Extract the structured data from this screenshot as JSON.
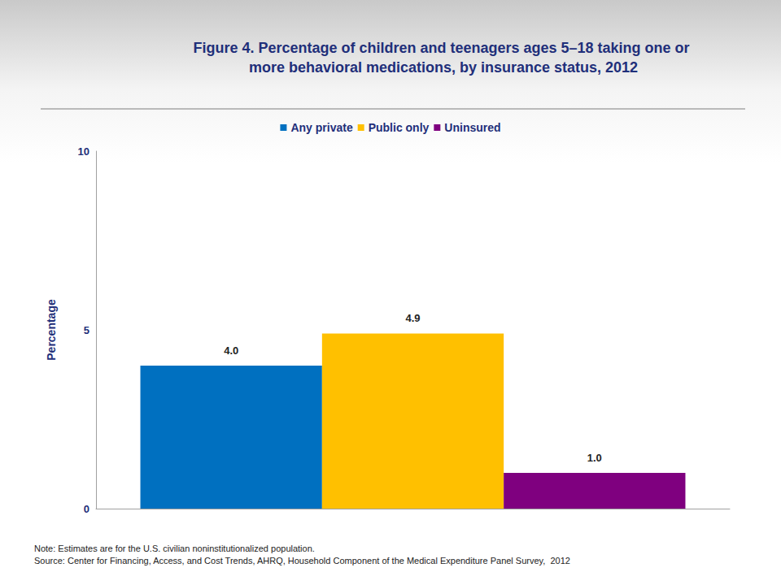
{
  "chart_data": {
    "type": "bar",
    "title": "Figure 4. Percentage of children and teenagers ages 5–18 taking one or more behavioral medications, by insurance status, 2012",
    "categories": [
      null
    ],
    "series": [
      {
        "name": "Any private",
        "color": "#0070c0",
        "values": [
          4.0
        ],
        "value_labels": [
          "4.0"
        ]
      },
      {
        "name": "Public only",
        "color": "#ffc000",
        "values": [
          4.9
        ],
        "value_labels": [
          "4.9"
        ]
      },
      {
        "name": "Uninsured",
        "color": "#7f007f",
        "values": [
          1.0
        ],
        "value_labels": [
          "1.0"
        ]
      }
    ],
    "ylabel": "Percentage",
    "ylim": [
      0,
      10
    ],
    "yticks": [
      0,
      5,
      10
    ],
    "grid": false,
    "legend": "top",
    "data_labels": true,
    "note": "Note: Estimates are for the U.S. civilian noninstitutionalized population.",
    "source": "Source: Center for Financing, Access, and Cost Trends, AHRQ, Household Component of the Medical Expenditure Panel Survey,  2012"
  }
}
